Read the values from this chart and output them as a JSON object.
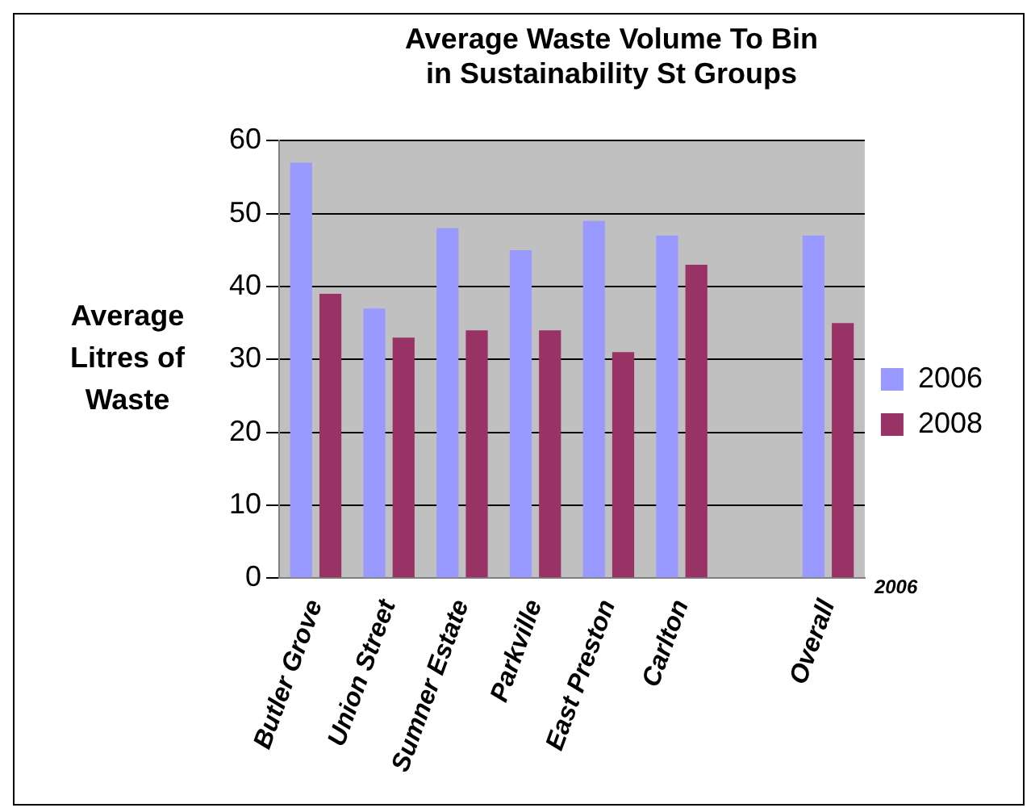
{
  "chart_data": {
    "type": "bar",
    "title": "Average Waste Volume To Bin\nin Sustainability St Groups",
    "ylabel": "Average Litres of Waste",
    "categories": [
      "Butler Grove",
      "Union Street",
      "Sumner Estate",
      "Parkville",
      "East Preston",
      "Carlton",
      null,
      "Overall"
    ],
    "series": [
      {
        "name": "2006",
        "color": "#9999ff",
        "values": [
          57,
          37,
          48,
          45,
          49,
          47,
          null,
          47
        ]
      },
      {
        "name": "2008",
        "color": "#993366",
        "values": [
          39,
          33,
          34,
          34,
          31,
          43,
          null,
          35
        ]
      }
    ],
    "ylim": [
      0,
      60
    ],
    "yticks": [
      0,
      10,
      20,
      30,
      40,
      50,
      60
    ],
    "grid": "y",
    "legend": "right",
    "annotations": [
      "2006"
    ]
  }
}
